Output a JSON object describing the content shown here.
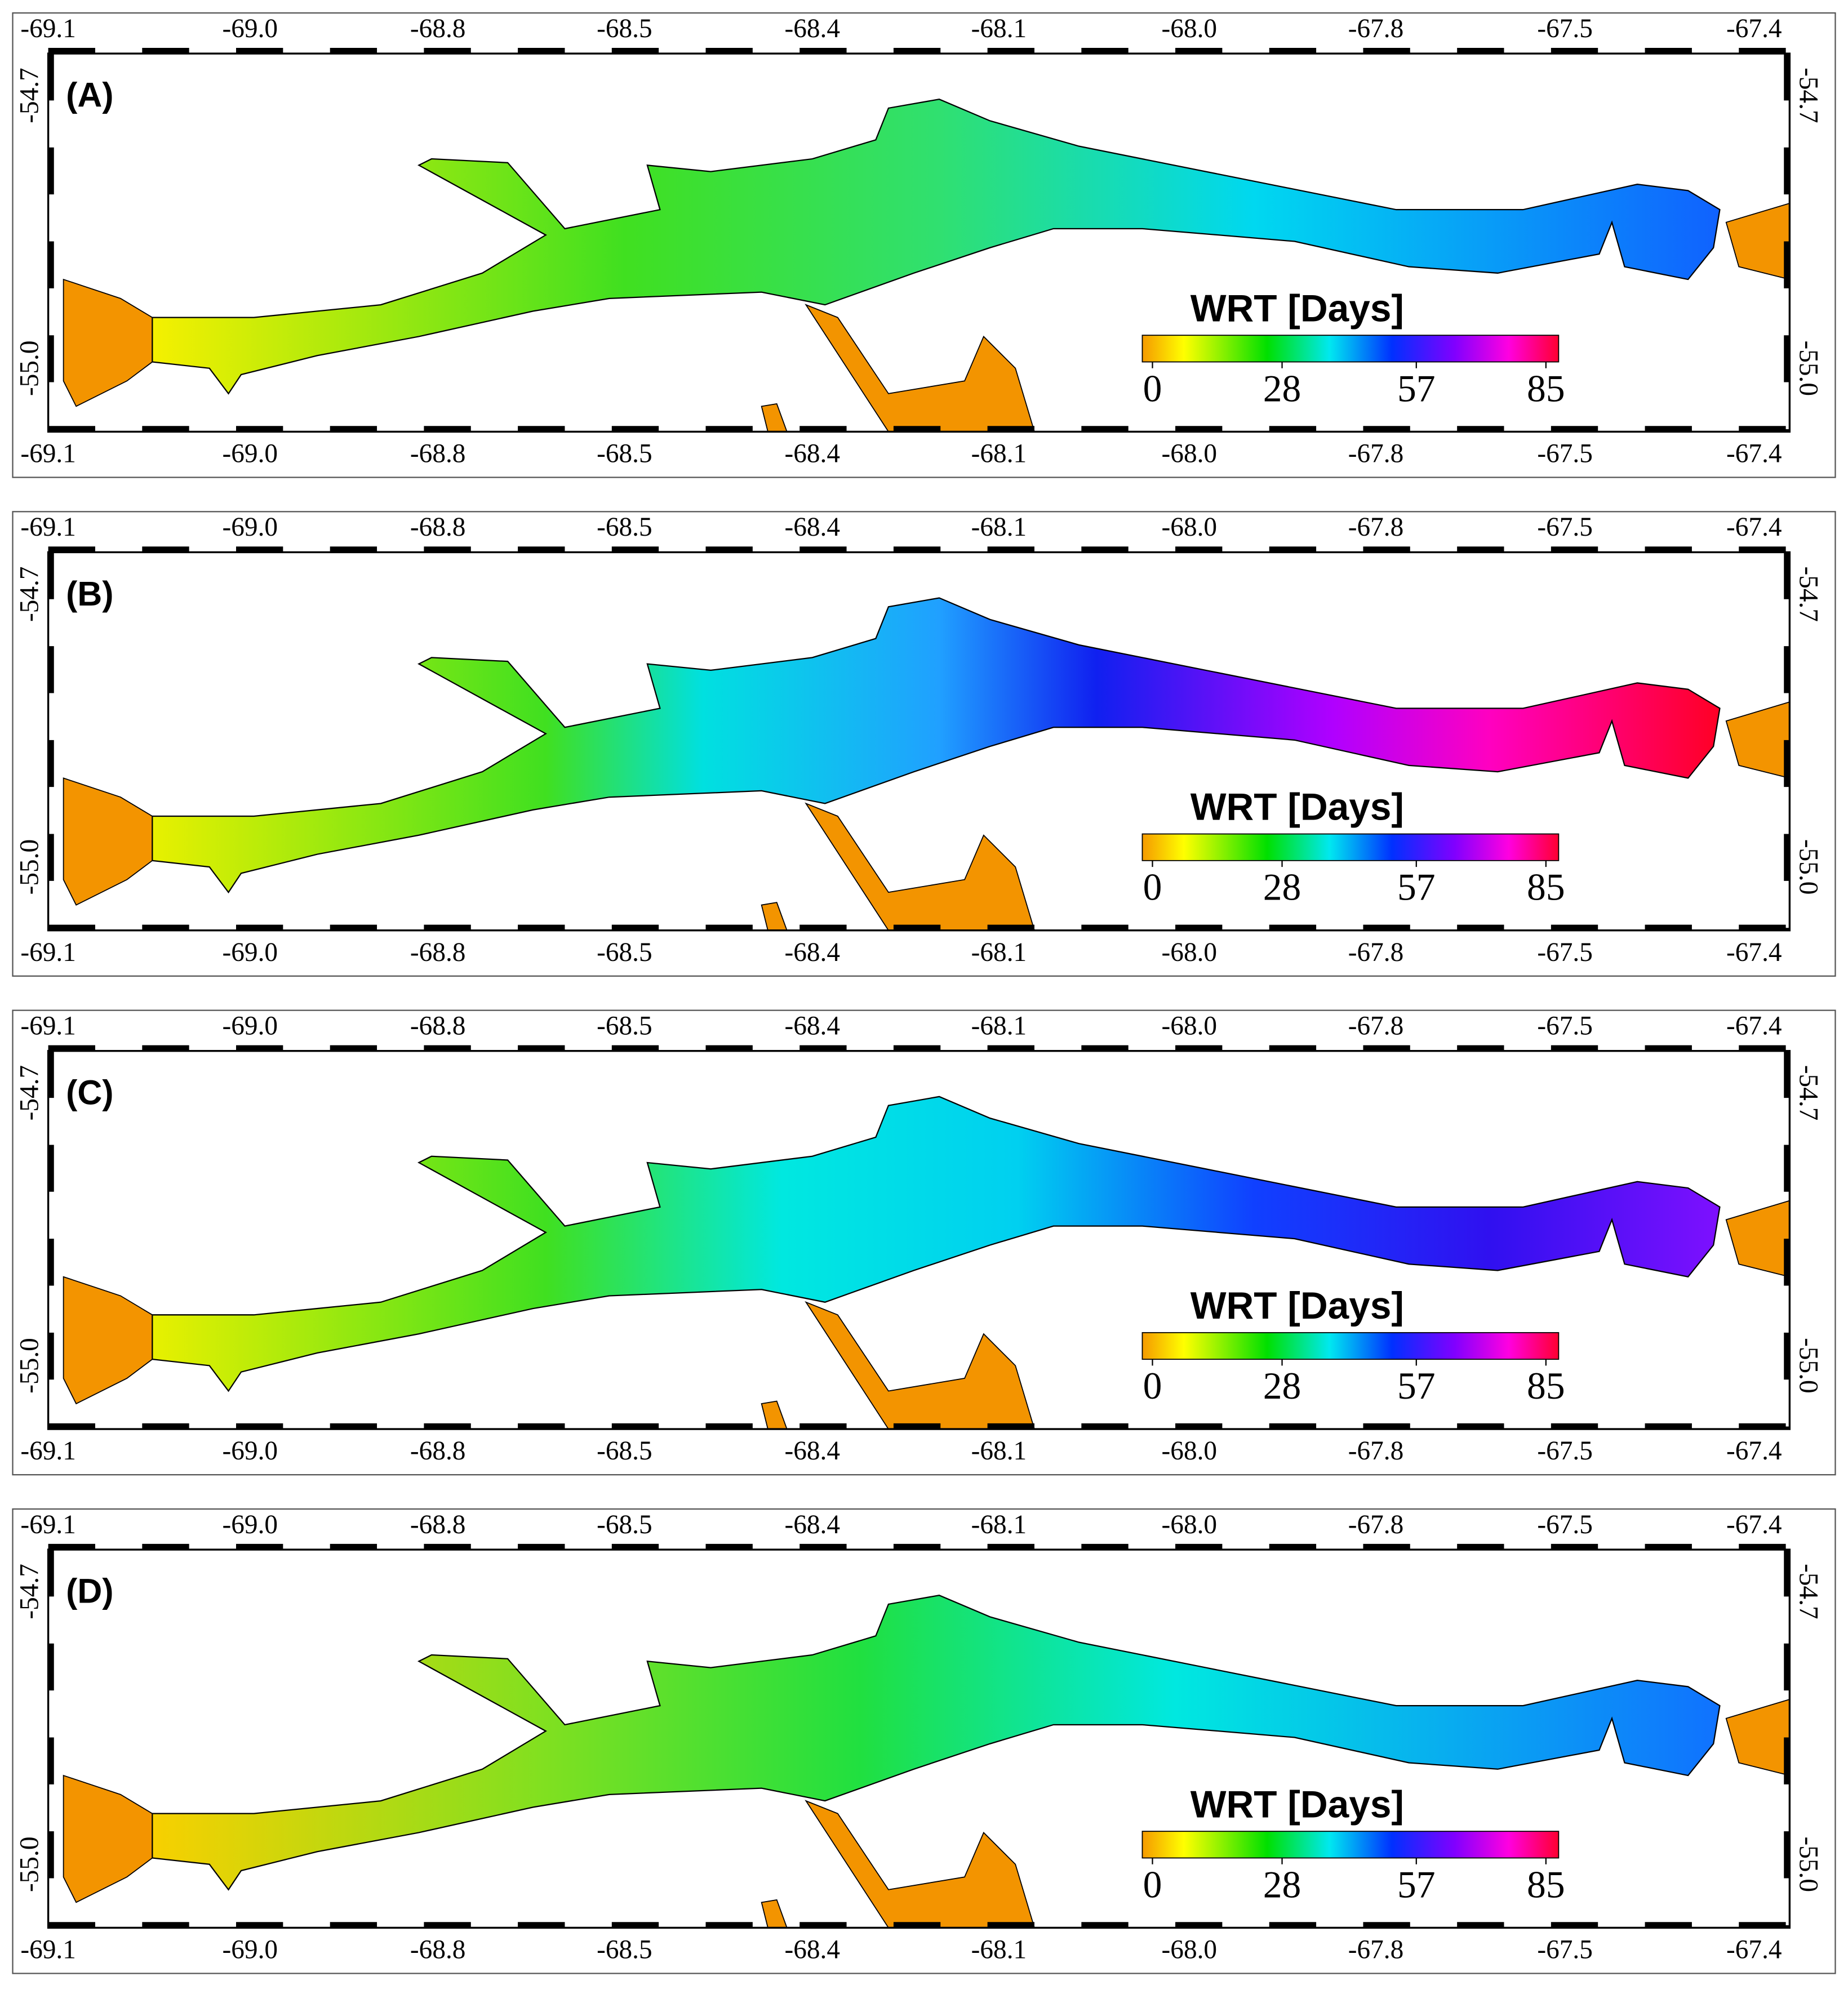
{
  "axes": {
    "x_labels": [
      "-69.1",
      "-69.0",
      "-68.8",
      "-68.5",
      "-68.4",
      "-68.1",
      "-68.0",
      "-67.8",
      "-67.5",
      "-67.4"
    ],
    "y_labels": [
      "-54.7",
      "-55.0"
    ]
  },
  "colorbar": {
    "title": "WRT [Days]",
    "ticks": [
      0,
      28,
      57,
      85
    ]
  },
  "panels": [
    {
      "label": "(A)"
    },
    {
      "label": "(B)"
    },
    {
      "label": "(C)"
    },
    {
      "label": "(D)"
    }
  ]
}
